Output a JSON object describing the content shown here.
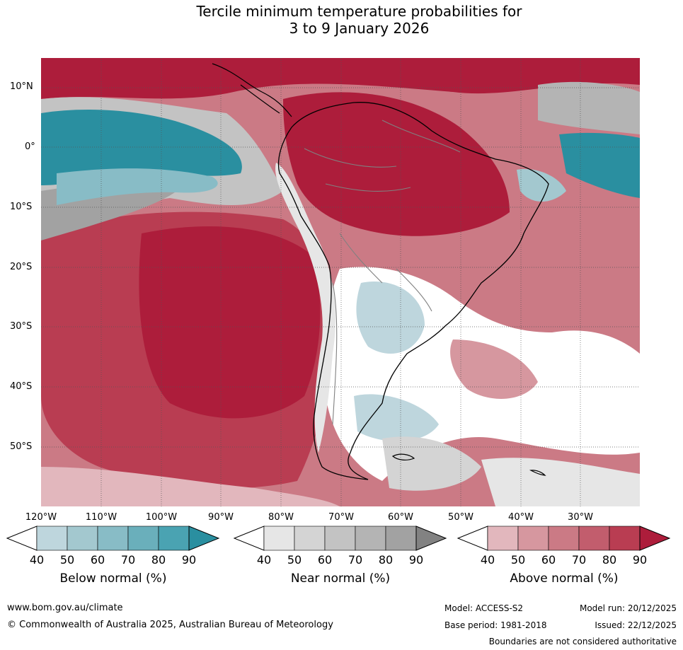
{
  "title": {
    "line1": "Tercile minimum temperature probabilities for",
    "line2": "3 to 9 January 2026"
  },
  "map": {
    "lat_labels": [
      "10°N",
      "0°",
      "10°S",
      "20°S",
      "30°S",
      "40°S",
      "50°S"
    ],
    "lon_labels": [
      "120°W",
      "110°W",
      "100°W",
      "90°W",
      "80°W",
      "70°W",
      "60°W",
      "50°W",
      "40°W",
      "30°W"
    ],
    "colors": {
      "below": [
        "#bed6dd",
        "#a3c8cf",
        "#88bcc6",
        "#6aafbb",
        "#4aa3b2",
        "#2a8fa0"
      ],
      "near": [
        "#e6e6e6",
        "#d4d4d4",
        "#c3c3c3",
        "#b4b4b4",
        "#a2a2a2",
        "#828282"
      ],
      "above": [
        "#e2b7bd",
        "#d6979f",
        "#cb7a85",
        "#c25d6d",
        "#b93d52",
        "#ad1d3b"
      ],
      "land_outline": "#000000",
      "border": "#808080"
    }
  },
  "legend": {
    "below": {
      "label": "Below normal (%)",
      "ticks": [
        "40",
        "50",
        "60",
        "70",
        "80",
        "90"
      ]
    },
    "near": {
      "label": "Near normal (%)",
      "ticks": [
        "40",
        "50",
        "60",
        "70",
        "80",
        "90"
      ]
    },
    "above": {
      "label": "Above normal (%)",
      "ticks": [
        "40",
        "50",
        "60",
        "70",
        "80",
        "90"
      ]
    }
  },
  "footer": {
    "url": "www.bom.gov.au/climate",
    "copyright": "© Commonwealth of Australia 2025, Australian Bureau of Meteorology",
    "model": "Model: ACCESS-S2",
    "model_run": "Model run: 20/12/2025",
    "base_period": "Base period: 1981-2018",
    "issued": "Issued: 22/12/2025",
    "disclaimer": "Boundaries are not considered authoritative"
  }
}
